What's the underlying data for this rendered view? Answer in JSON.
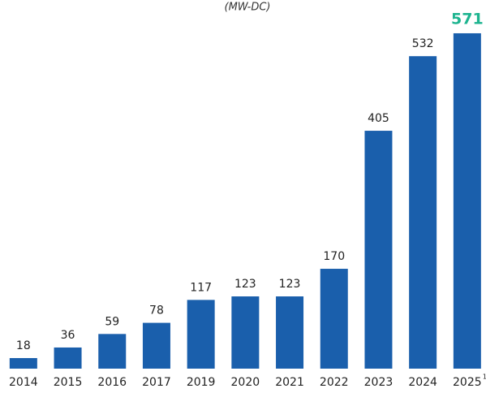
{
  "chart_data": {
    "type": "bar",
    "subtitle": "(MW-DC)",
    "categories": [
      "2014",
      "2015",
      "2016",
      "2017",
      "2019",
      "2020",
      "2021",
      "2022",
      "2023",
      "2024",
      "2025"
    ],
    "values": [
      18,
      36,
      59,
      78,
      117,
      123,
      123,
      170,
      405,
      532,
      571
    ],
    "color": "#1a5fac",
    "ylim": [
      0,
      600
    ],
    "highlight": {
      "index": 10,
      "color": "#1db48f",
      "marker": "1"
    }
  }
}
